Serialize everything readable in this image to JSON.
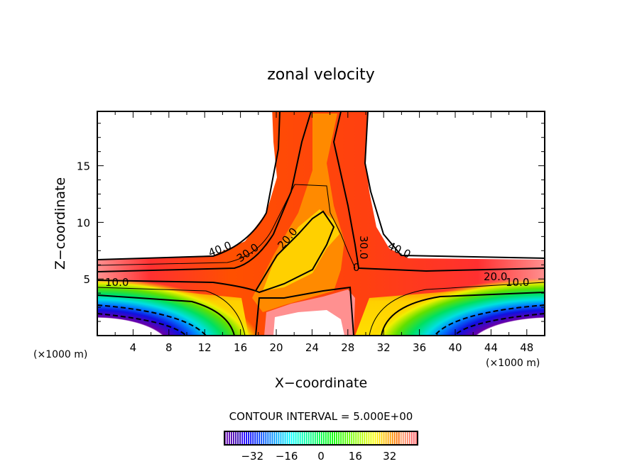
{
  "chart_data": {
    "type": "contour",
    "title": "zonal velocity",
    "xlabel": "X−coordinate",
    "ylabel": "Z−coordinate",
    "x_unit_left": "(×1000 m)",
    "x_unit_right": "(×1000 m)",
    "xlim": [
      0,
      50
    ],
    "ylim": [
      0,
      19.8
    ],
    "xticks": [
      4,
      8,
      12,
      16,
      20,
      24,
      28,
      32,
      36,
      40,
      44,
      48
    ],
    "yticks": [
      5,
      10,
      15
    ],
    "contour_labels": [
      "40.0",
      "30.0",
      "20.0",
      "30.0",
      "0",
      "40.0",
      "20.0",
      "10.0",
      "10.0"
    ],
    "contour_interval_text": "CONTOUR INTERVAL = 5.000E+00",
    "contour_interval": 5,
    "colorbar": {
      "range": [
        -45,
        45
      ],
      "ticks": [
        "−32",
        "−16",
        "0",
        "16",
        "32"
      ],
      "tick_values": [
        -32,
        -16,
        0,
        16,
        32
      ]
    }
  }
}
